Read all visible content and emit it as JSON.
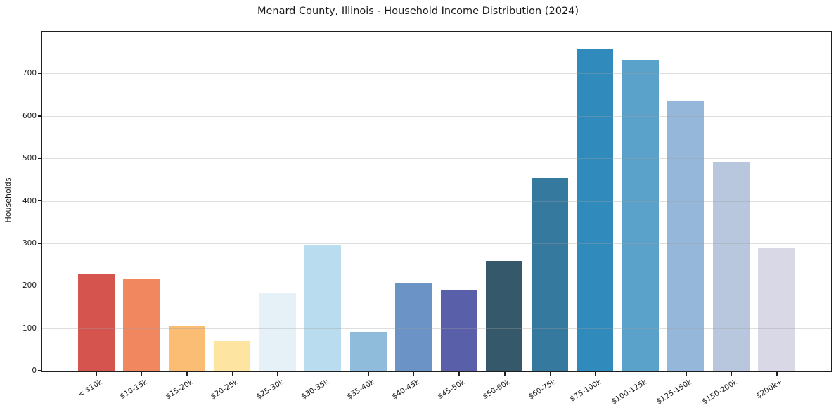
{
  "title": "Menard County, Illinois - Household Income Distribution (2024)",
  "chart_data": {
    "type": "bar",
    "title": "Menard County, Illinois - Household Income Distribution (2024)",
    "xlabel": "",
    "ylabel": "Households",
    "categories": [
      "< $10k",
      "$10-15k",
      "$15-20k",
      "$20-25k",
      "$25-30k",
      "$30-35k",
      "$35-40k",
      "$40-45k",
      "$45-50k",
      "$50-60k",
      "$60-75k",
      "$75-100k",
      "$100-125k",
      "$125-150k",
      "$150-200k",
      "$200k+"
    ],
    "values": [
      230,
      218,
      106,
      71,
      184,
      297,
      92,
      207,
      192,
      260,
      455,
      760,
      733,
      636,
      493,
      291
    ],
    "bar_colors": [
      "#d6544e",
      "#f0875f",
      "#fbbc74",
      "#fde4a0",
      "#e6f1f7",
      "#b9dcee",
      "#90bcdc",
      "#6b93c6",
      "#5a5fa9",
      "#35596b",
      "#36799e",
      "#318abc",
      "#5aa2c9",
      "#95b7d9",
      "#b8c7de",
      "#d8d8e6"
    ],
    "ylim": [
      0,
      800
    ],
    "yticks": [
      0,
      100,
      200,
      300,
      400,
      500,
      600,
      700
    ],
    "grid": "horizontal-on-top",
    "legend": "none",
    "bar_label_rotation_deg": 32
  },
  "colors": {
    "background": "#ffffff",
    "spine": "#1f1f1f",
    "grid": "#e3e3e3",
    "text": "#1a1a1a"
  }
}
